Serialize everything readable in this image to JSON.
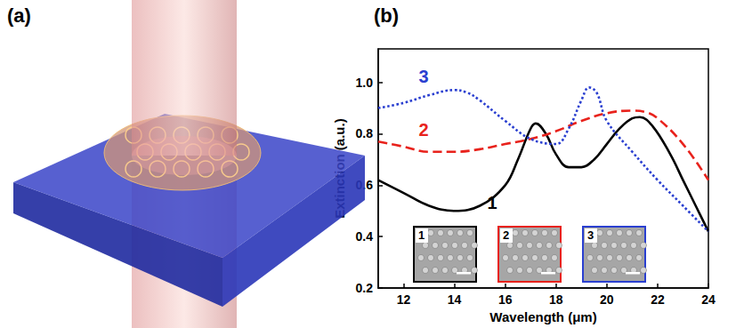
{
  "panels": {
    "a": "(a)",
    "b": "(b)"
  },
  "chart_data": {
    "type": "line",
    "xlabel": "Wavelength (μm)",
    "ylabel": "Extinction (a.u.)",
    "xlim": [
      11,
      24
    ],
    "xticks": [
      12,
      14,
      16,
      18,
      20,
      22,
      24
    ],
    "ylim": [
      0.2,
      1.13
    ],
    "yticks": [
      0.2,
      0.4,
      0.6,
      0.8,
      {
        "value": 1.0,
        "label": "1.0"
      }
    ],
    "grid": false,
    "series": [
      {
        "name": "1",
        "color": "#000000",
        "line_style": "solid",
        "x": [
          11,
          12,
          13,
          14,
          15,
          16,
          16.5,
          17,
          17.2,
          17.6,
          18,
          18.5,
          19,
          19.5,
          20,
          20.5,
          21,
          21.3,
          21.8,
          22.5,
          23,
          23.5,
          24
        ],
        "values": [
          0.62,
          0.57,
          0.52,
          0.5,
          0.52,
          0.6,
          0.7,
          0.82,
          0.84,
          0.8,
          0.72,
          0.67,
          0.67,
          0.7,
          0.76,
          0.82,
          0.86,
          0.865,
          0.83,
          0.72,
          0.62,
          0.52,
          0.42
        ]
      },
      {
        "name": "2",
        "color": "#e8221c",
        "line_style": "dashed",
        "x": [
          11,
          12,
          13,
          14,
          15,
          16,
          17,
          18,
          19,
          20,
          21,
          21.5,
          22,
          23,
          24
        ],
        "values": [
          0.77,
          0.75,
          0.73,
          0.73,
          0.74,
          0.76,
          0.78,
          0.81,
          0.85,
          0.88,
          0.89,
          0.885,
          0.86,
          0.76,
          0.62
        ]
      },
      {
        "name": "3",
        "color": "#2a3fd0",
        "line_style": "dotted",
        "x": [
          11,
          12,
          13,
          14,
          14.5,
          15,
          16,
          17,
          18,
          18.5,
          19,
          19.3,
          19.6,
          20,
          21,
          22,
          23,
          24
        ],
        "values": [
          0.9,
          0.92,
          0.95,
          0.97,
          0.96,
          0.93,
          0.85,
          0.78,
          0.76,
          0.82,
          0.93,
          0.98,
          0.96,
          0.85,
          0.73,
          0.62,
          0.52,
          0.42
        ]
      }
    ]
  }
}
